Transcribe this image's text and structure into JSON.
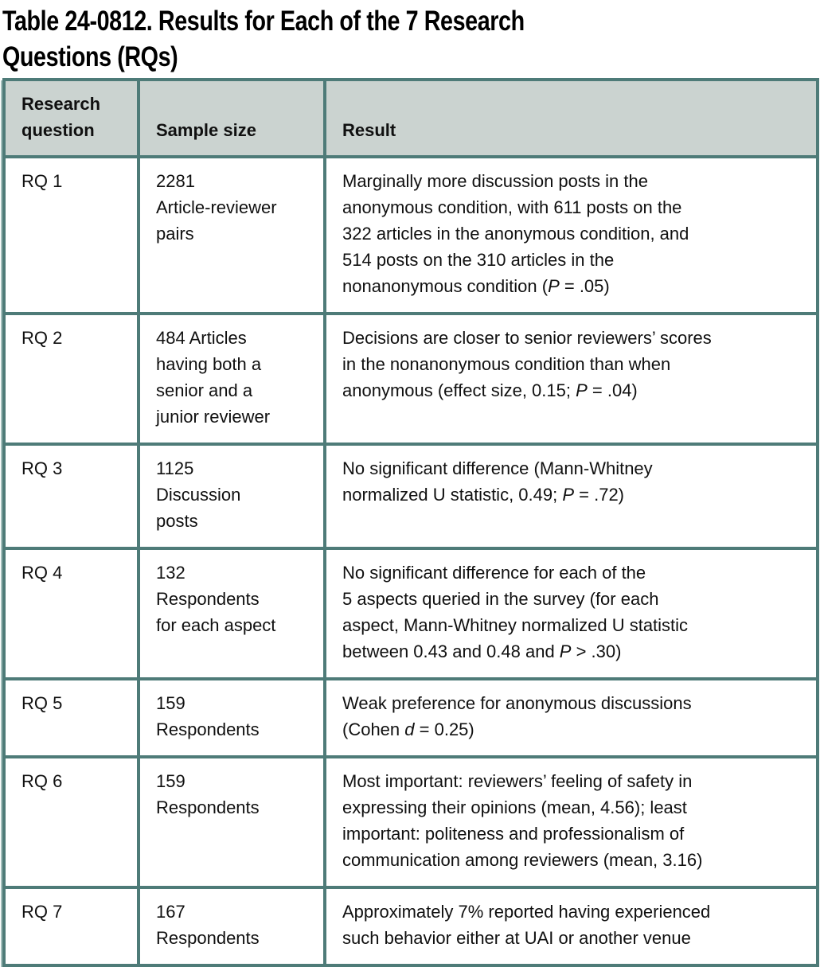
{
  "page": {
    "title": "Table 24-0812. Results for Each of the 7 Research\nQuestions (RQs)"
  },
  "colors": {
    "border_teal": "#4e7b78",
    "border_light": "#a3bfbc",
    "header_bg": "#cbd3d0",
    "text": "#101010"
  },
  "table": {
    "columns": [
      "Research\nquestion",
      "Sample size",
      "Result"
    ],
    "rows": [
      {
        "rq": "RQ 1",
        "sample_size": "2281\nArticle-reviewer\npairs",
        "result": [
          {
            "t": "Marginally more discussion posts in the\nanonymous condition, with 611 posts on the\n322 articles in the anonymous condition, and\n514 posts on the 310 articles in the\nnonanonymous condition ("
          },
          {
            "t": "P",
            "i": true
          },
          {
            "t": " = .05)"
          }
        ]
      },
      {
        "rq": "RQ 2",
        "sample_size": "484 Articles\nhaving both a\nsenior and a\njunior reviewer",
        "result": [
          {
            "t": "Decisions are closer to senior reviewers’ scores\nin the nonanonymous condition than when\nanonymous (effect size, 0.15; "
          },
          {
            "t": "P",
            "i": true
          },
          {
            "t": " = .04)"
          }
        ]
      },
      {
        "rq": "RQ 3",
        "sample_size": "1125\nDiscussion\nposts",
        "result": [
          {
            "t": "No significant difference (Mann-Whitney\nnormalized U statistic, 0.49; "
          },
          {
            "t": "P",
            "i": true
          },
          {
            "t": " = .72)"
          }
        ]
      },
      {
        "rq": "RQ 4",
        "sample_size": "132\nRespondents\nfor each aspect",
        "result": [
          {
            "t": "No significant difference for each of the\n5 aspects queried in the survey (for each\naspect, Mann-Whitney normalized U statistic\nbetween 0.43 and 0.48 and "
          },
          {
            "t": "P",
            "i": true
          },
          {
            "t": " > .30)"
          }
        ]
      },
      {
        "rq": "RQ 5",
        "sample_size": "159\nRespondents",
        "result": [
          {
            "t": "Weak preference for anonymous discussions\n(Cohen "
          },
          {
            "t": "d",
            "i": true
          },
          {
            "t": " = 0.25)"
          }
        ]
      },
      {
        "rq": "RQ 6",
        "sample_size": "159\nRespondents",
        "result": [
          {
            "t": "Most important: reviewers’ feeling of safety in\nexpressing their opinions (mean, 4.56); least\nimportant: politeness and professionalism of\ncommunication among reviewers (mean, 3.16)"
          }
        ]
      },
      {
        "rq": "RQ 7",
        "sample_size": "167\nRespondents",
        "result": [
          {
            "t": "Approximately 7% reported having experienced\nsuch behavior either at UAI or another venue"
          }
        ]
      }
    ]
  }
}
